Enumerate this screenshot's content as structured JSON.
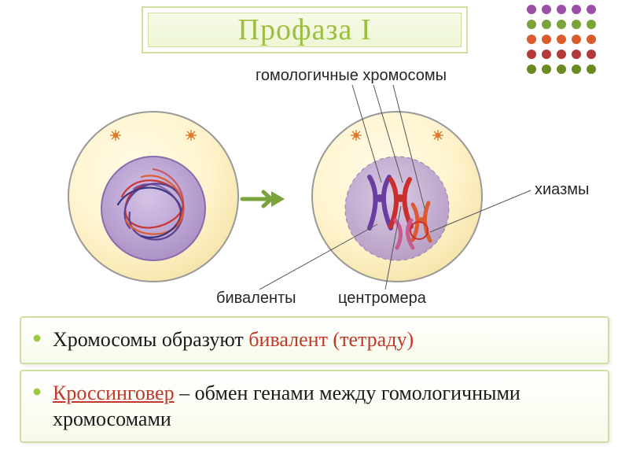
{
  "title": "Профаза I",
  "title_color": "#9bbf3f",
  "title_fontsize": 38,
  "banner": {
    "border": "#cde0a0",
    "fill_top": "#f6fbe8",
    "fill_bottom": "#eef6d5"
  },
  "dot_grid": {
    "rows": 5,
    "cols": 5,
    "spacing": 19,
    "colors_by_row": [
      "#9c4fa6",
      "#7aa33a",
      "#d95b2e",
      "#b33939",
      "#6a8a22"
    ]
  },
  "labels": {
    "homologous": "гомологичные хромосомы",
    "chiasma": "хиазмы",
    "bivalents": "биваленты",
    "centromere": "центромера"
  },
  "label_fontsize": 20,
  "label_color": "#262626",
  "arrow_color": "#7aa33a",
  "cell": {
    "outer_fill": "#fff4cf",
    "outer_stroke": "#999999",
    "inner_highlight": "#fffbe6",
    "nucleus_fill": "#bfa6d6",
    "nucleus_stroke": "#8a6bab",
    "chromatin_colors": [
      "#c9302c",
      "#5a3b8f",
      "#d95b2e",
      "#2f2f7a"
    ],
    "centriole_color": "#e07b2e",
    "chromosome_colors": {
      "purple": "#6a3da0",
      "red": "#c9302c",
      "orange": "#d95b2e",
      "pink": "#c95a8f"
    },
    "chiasma_circle": "#c9302c"
  },
  "leader_line_color": "#555555",
  "box1": {
    "prefix": "Хромосомы образуют ",
    "highlight": "бивалент (тетраду)",
    "highlight_color": "#c0392b"
  },
  "box2": {
    "term": "Кроссинговер",
    "term_color": "#c0392b",
    "rest": " – обмен генами между гомологичными хромосомами"
  },
  "box_style": {
    "border": "#cde0a0",
    "bg_top": "#ffffff",
    "bg_bottom": "#f6fbe9",
    "bullet_color": "#99cc33",
    "text_fontsize": 26,
    "text_color": "#1a1a1a"
  }
}
